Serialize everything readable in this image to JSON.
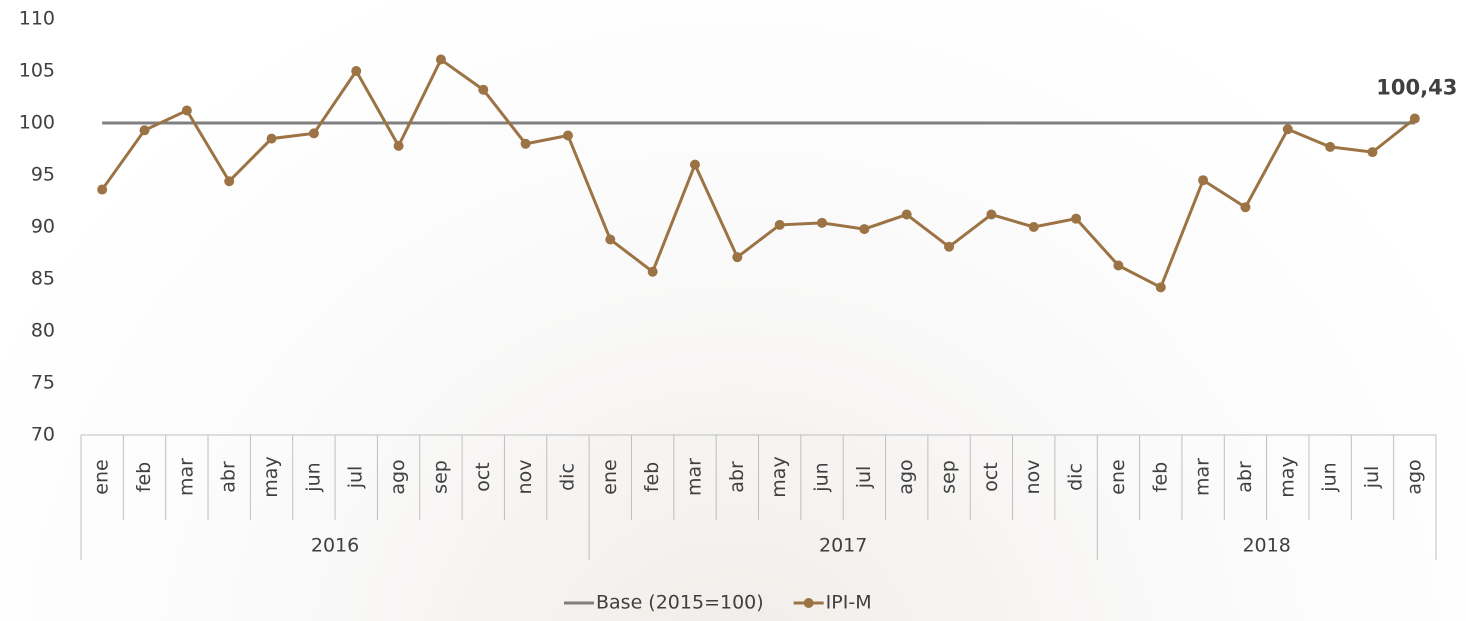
{
  "chart_data": {
    "type": "line",
    "groups": [
      {
        "label": "2016",
        "categories": [
          "ene",
          "feb",
          "mar",
          "abr",
          "may",
          "jun",
          "jul",
          "ago",
          "sep",
          "oct",
          "nov",
          "dic"
        ]
      },
      {
        "label": "2017",
        "categories": [
          "ene",
          "feb",
          "mar",
          "abr",
          "may",
          "jun",
          "jul",
          "ago",
          "sep",
          "oct",
          "nov",
          "dic"
        ]
      },
      {
        "label": "2018",
        "categories": [
          "ene",
          "feb",
          "mar",
          "abr",
          "may",
          "jun",
          "jul",
          "ago"
        ]
      }
    ],
    "series": [
      {
        "name": "Base (2015=100)",
        "color": "#7f7f7f",
        "markers": false,
        "values": [
          100,
          100,
          100,
          100,
          100,
          100,
          100,
          100,
          100,
          100,
          100,
          100,
          100,
          100,
          100,
          100,
          100,
          100,
          100,
          100,
          100,
          100,
          100,
          100,
          100,
          100,
          100,
          100,
          100,
          100,
          100,
          100
        ]
      },
      {
        "name": "IPI-M",
        "color": "#9c7344",
        "markers": true,
        "values": [
          93.6,
          99.3,
          101.2,
          94.4,
          98.5,
          99.0,
          105.0,
          97.8,
          106.1,
          103.2,
          98.0,
          98.8,
          88.8,
          85.7,
          96.0,
          87.1,
          90.2,
          90.4,
          89.8,
          91.2,
          88.1,
          91.2,
          90.0,
          90.8,
          86.3,
          84.2,
          94.5,
          91.9,
          99.4,
          97.7,
          97.2,
          100.43
        ],
        "value_labels": [
          null,
          null,
          null,
          null,
          null,
          null,
          null,
          null,
          null,
          null,
          null,
          null,
          null,
          null,
          null,
          null,
          null,
          null,
          null,
          null,
          null,
          null,
          null,
          null,
          null,
          null,
          null,
          null,
          null,
          null,
          null,
          "100,43"
        ]
      }
    ],
    "ylim": [
      70,
      110
    ],
    "yticks": [
      70,
      75,
      80,
      85,
      90,
      95,
      100,
      105,
      110
    ],
    "grid": false,
    "legend": "bottom"
  }
}
